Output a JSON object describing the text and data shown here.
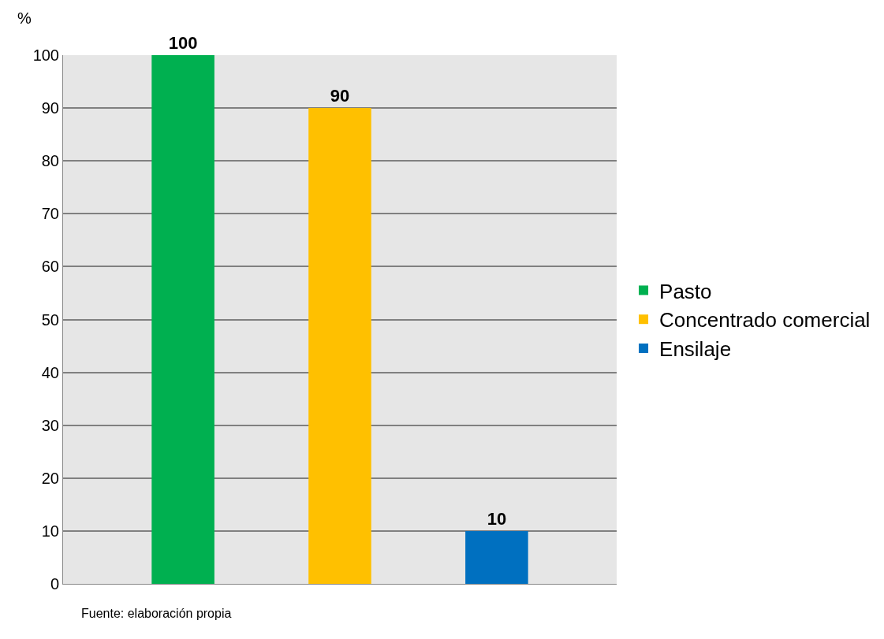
{
  "chart_data": {
    "type": "bar",
    "ylabel": "%",
    "categories": [
      null
    ],
    "series": [
      {
        "name": "Pasto",
        "color": "#00b050",
        "values": [
          100
        ]
      },
      {
        "name": "Concentrado comercial",
        "color": "#ffc000",
        "values": [
          90
        ]
      },
      {
        "name": "Ensilaje",
        "color": "#0070c0",
        "values": [
          10
        ]
      }
    ],
    "ylim": [
      0,
      100
    ],
    "yticks": [
      0,
      10,
      20,
      30,
      40,
      50,
      60,
      70,
      80,
      90,
      100
    ],
    "grid": "y",
    "legend": "right",
    "data_labels": true,
    "annotations": [
      "Fuente: elaboración propia"
    ]
  }
}
